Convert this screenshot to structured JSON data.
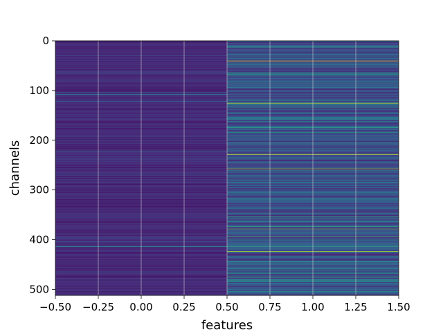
{
  "chart_data": {
    "type": "heatmap",
    "title": "",
    "xlabel": "features",
    "ylabel": "channels",
    "xlim": [
      -0.5,
      1.5
    ],
    "ylim": [
      512,
      0
    ],
    "colormap": "viridis",
    "grid": true,
    "columns": 2,
    "rows": 512,
    "x_ticks": [
      -0.5,
      -0.25,
      0.0,
      0.25,
      0.5,
      0.75,
      1.0,
      1.25,
      1.5
    ],
    "x_tick_labels": [
      "−0.50",
      "−0.25",
      "0.00",
      "0.25",
      "0.50",
      "0.75",
      "1.00",
      "1.25",
      "1.50"
    ],
    "y_ticks": [
      0,
      100,
      200,
      300,
      400,
      500
    ],
    "y_tick_labels": [
      "0",
      "100",
      "200",
      "300",
      "400",
      "500"
    ],
    "column_0_level": 0.12,
    "column_1_level": 0.25,
    "column_1_bright_rows": [
      {
        "row": 40,
        "value": 0.95
      },
      {
        "row": 125,
        "value": 0.9
      },
      {
        "row": 228,
        "value": 0.95
      },
      {
        "row": 257,
        "value": 0.85
      },
      {
        "row": 378,
        "value": 0.75
      },
      {
        "row": 393,
        "value": 0.7
      },
      {
        "row": 423,
        "value": 0.9
      }
    ],
    "column_0_bright_rows": [
      {
        "row": 107,
        "value": 0.45
      },
      {
        "row": 413,
        "value": 0.5
      }
    ],
    "colors": {
      "grid": "#d8d8d8",
      "background": "#ffffff"
    }
  }
}
